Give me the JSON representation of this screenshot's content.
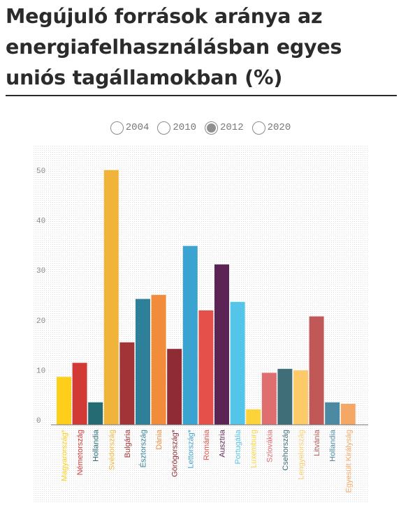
{
  "title": "Megújuló források aránya az energiafelhasználásban egyes uniós tagállamokban (%)",
  "year_options": [
    {
      "label": "2004",
      "selected": false
    },
    {
      "label": "2010",
      "selected": false
    },
    {
      "label": "2012",
      "selected": true
    },
    {
      "label": "2020",
      "selected": false
    }
  ],
  "chart_data": {
    "type": "bar",
    "categories": [
      "Magyarország*",
      "Németország",
      "Hollandia",
      "Svédország",
      "Bulgária",
      "Észtország",
      "Dánia",
      "Görögország*",
      "Lettország*",
      "Románia",
      "Ausztria",
      "Portugália",
      "Luxemburg",
      "Szlovákia",
      "Csehország",
      "Lengyelország",
      "Litvánia",
      "Hollandia",
      "Egyesült Királyság"
    ],
    "values": [
      9.6,
      12.4,
      4.5,
      51.0,
      16.5,
      25.2,
      26.0,
      15.2,
      35.8,
      22.9,
      32.1,
      24.6,
      3.1,
      10.4,
      11.2,
      10.9,
      21.7,
      4.5,
      4.2
    ],
    "colors": [
      "#fdcf1b",
      "#d13a35",
      "#246b73",
      "#f0b43a",
      "#a23336",
      "#2d8098",
      "#f28c3a",
      "#8f2b34",
      "#3aa3cf",
      "#e5504b",
      "#5c2454",
      "#52c5e8",
      "#fdd33a",
      "#df6e6f",
      "#3f6d78",
      "#fcca69",
      "#bf5857",
      "#4c8aa3",
      "#f5a765"
    ],
    "y_ticks": [
      0,
      10,
      20,
      30,
      40,
      50
    ],
    "ylim": [
      0,
      56
    ],
    "grid": false
  }
}
